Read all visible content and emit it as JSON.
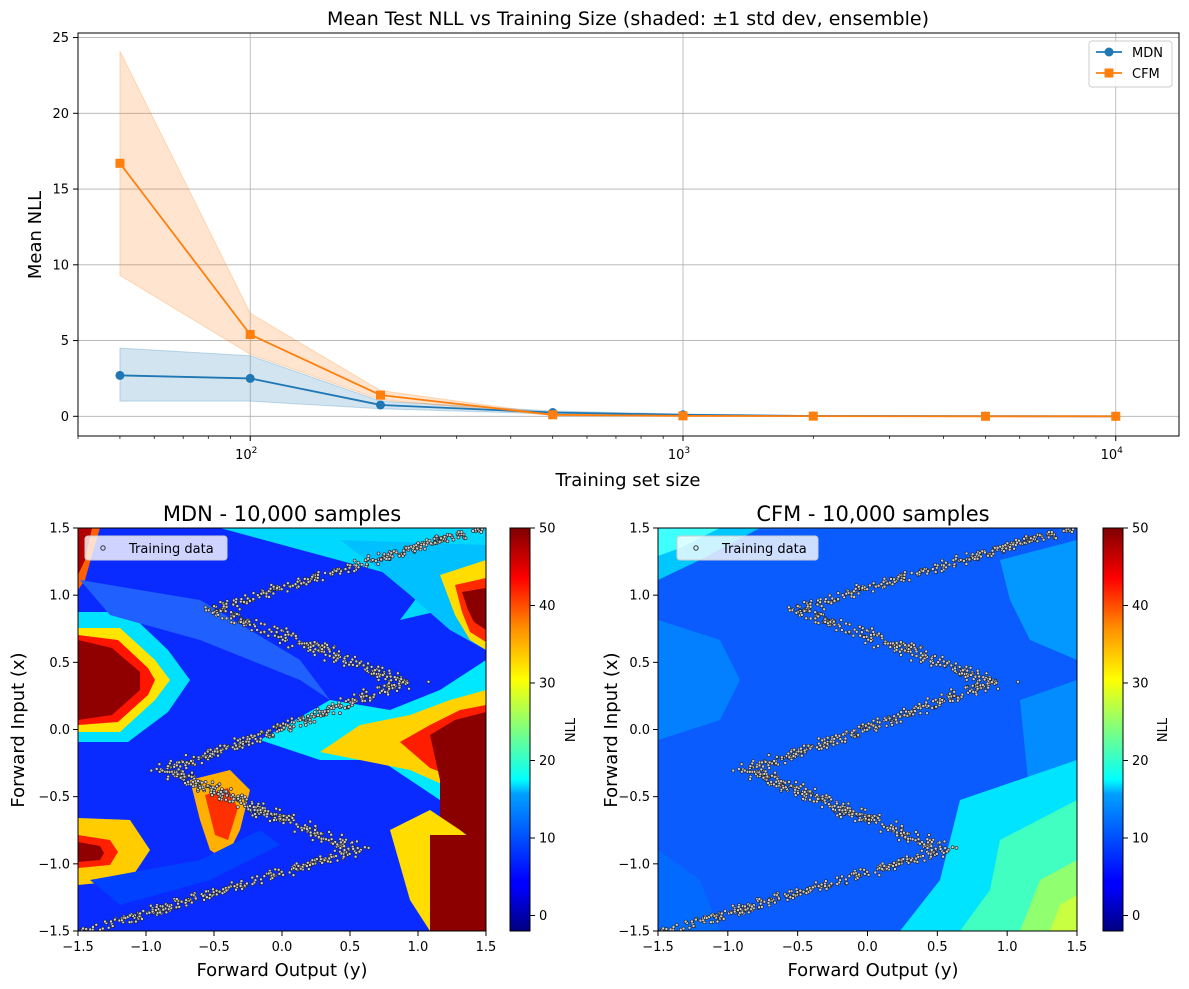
{
  "chart_data": [
    {
      "type": "line",
      "title": "Mean Test NLL vs Training Size (shaded: ±1 std dev, ensemble)",
      "xlabel": "Training set size",
      "ylabel": "Mean NLL",
      "xscale": "log",
      "xlim": [
        40,
        14000
      ],
      "ylim": [
        -1.3,
        25.3
      ],
      "grid": true,
      "legend_position": "top-right",
      "x": [
        50,
        100,
        200,
        500,
        1000,
        2000,
        5000,
        10000
      ],
      "x_ticks": [
        {
          "value": 100,
          "base": "10",
          "exp": "2"
        },
        {
          "value": 1000,
          "base": "10",
          "exp": "3"
        },
        {
          "value": 10000,
          "base": "10",
          "exp": "4"
        }
      ],
      "y_ticks": [
        0,
        5,
        10,
        15,
        20,
        25
      ],
      "series": [
        {
          "name": "MDN",
          "color": "#1f77b4",
          "marker": "circle",
          "values": [
            2.7,
            2.5,
            0.75,
            0.25,
            0.1,
            0.02,
            0.01,
            0.0
          ],
          "lower": [
            1.0,
            1.0,
            0.5,
            0.15,
            0.05,
            0.0,
            0.0,
            0.0
          ],
          "upper": [
            4.5,
            4.0,
            1.0,
            0.35,
            0.15,
            0.04,
            0.02,
            0.01
          ]
        },
        {
          "name": "CFM",
          "color": "#ff7f0e",
          "marker": "square",
          "values": [
            16.7,
            5.4,
            1.4,
            0.1,
            0.03,
            0.01,
            0.0,
            0.0
          ],
          "lower": [
            9.3,
            4.1,
            1.1,
            0.05,
            0.0,
            0.0,
            0.0,
            0.0
          ],
          "upper": [
            24.1,
            6.8,
            1.7,
            0.15,
            0.06,
            0.02,
            0.01,
            0.01
          ]
        }
      ]
    },
    {
      "type": "heatmap",
      "title": "MDN - 10,000 samples",
      "xlabel": "Forward Output (y)",
      "ylabel": "Forward Input (x)",
      "xlim": [
        -1.5,
        1.5
      ],
      "ylim": [
        -1.5,
        1.5
      ],
      "x_ticks": [
        "−1.5",
        "−1.0",
        "−0.5",
        "0.0",
        "0.5",
        "1.0",
        "1.5"
      ],
      "y_ticks": [
        "−1.5",
        "−1.0",
        "−0.5",
        "0.0",
        "0.5",
        "1.0",
        "1.5"
      ],
      "colorbar": {
        "label": "NLL",
        "range": [
          -2,
          50
        ],
        "ticks": [
          0,
          10,
          20,
          30,
          40,
          50
        ],
        "colormap": "jet"
      },
      "legend": "Training data",
      "samples": 10000
    },
    {
      "type": "heatmap",
      "title": "CFM - 10,000 samples",
      "xlabel": "Forward Output (y)",
      "ylabel": "Forward Input (x)",
      "xlim": [
        -1.5,
        1.5
      ],
      "ylim": [
        -1.5,
        1.5
      ],
      "x_ticks": [
        "−1.5",
        "−1.0",
        "−0.5",
        "0.0",
        "0.5",
        "1.0",
        "1.5"
      ],
      "y_ticks": [
        "−1.5",
        "−1.0",
        "−0.5",
        "0.0",
        "0.5",
        "1.0",
        "1.5"
      ],
      "colorbar": {
        "label": "NLL",
        "range": [
          -2,
          50
        ],
        "ticks": [
          0,
          10,
          20,
          30,
          40,
          50
        ],
        "colormap": "jet"
      },
      "legend": "Training data",
      "samples": 10000
    }
  ]
}
